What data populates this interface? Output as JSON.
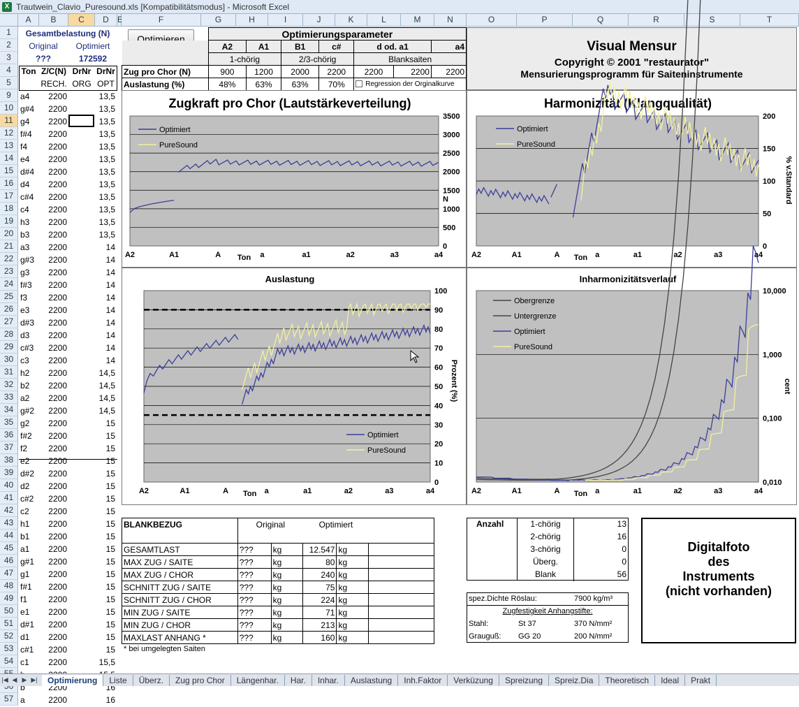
{
  "window_title": "Trautwein_Clavio_Puresound.xls  [Kompatibilitätsmodus] - Microsoft Excel",
  "columns": [
    "A",
    "B",
    "C",
    "D",
    "E",
    "F",
    "G",
    "H",
    "I",
    "J",
    "K",
    "L",
    "M",
    "N",
    "O",
    "P",
    "Q",
    "R",
    "S",
    "T"
  ],
  "rows": [
    "1",
    "2",
    "3",
    "4",
    "5",
    "9",
    "10",
    "11",
    "12",
    "13",
    "14",
    "15",
    "16",
    "17",
    "18",
    "19",
    "20",
    "21",
    "22",
    "23",
    "24",
    "25",
    "26",
    "27",
    "28",
    "29",
    "30",
    "31",
    "32",
    "33",
    "34",
    "35",
    "36",
    "37",
    "38",
    "39",
    "40",
    "41",
    "42",
    "43",
    "44",
    "45",
    "46",
    "47",
    "48",
    "49",
    "50",
    "51",
    "52",
    "53",
    "54",
    "55",
    "56",
    "57"
  ],
  "header_block": {
    "title": "Gesamtbelastung (N)",
    "original": "Original",
    "optimiert": "Optimiert",
    "orig_val": "???",
    "opt_val": "172592",
    "h_ton": "Ton",
    "h_zc": "Z/C(N)",
    "h_drnr1": "DrNr",
    "h_drnr2": "DrNr",
    "h_rech": "RECH.",
    "h_org": "ORG",
    "h_opt": "OPT"
  },
  "notes": [
    [
      "a4",
      "2200",
      "13,5"
    ],
    [
      "g#4",
      "2200",
      "13,5"
    ],
    [
      "g4",
      "2200",
      "13,5"
    ],
    [
      "f#4",
      "2200",
      "13,5"
    ],
    [
      "f4",
      "2200",
      "13,5"
    ],
    [
      "e4",
      "2200",
      "13,5"
    ],
    [
      "d#4",
      "2200",
      "13,5"
    ],
    [
      "d4",
      "2200",
      "13,5"
    ],
    [
      "c#4",
      "2200",
      "13,5"
    ],
    [
      "c4",
      "2200",
      "13,5"
    ],
    [
      "h3",
      "2200",
      "13,5"
    ],
    [
      "b3",
      "2200",
      "13,5"
    ],
    [
      "a3",
      "2200",
      "14"
    ],
    [
      "g#3",
      "2200",
      "14"
    ],
    [
      "g3",
      "2200",
      "14"
    ],
    [
      "f#3",
      "2200",
      "14"
    ],
    [
      "f3",
      "2200",
      "14"
    ],
    [
      "e3",
      "2200",
      "14"
    ],
    [
      "d#3",
      "2200",
      "14"
    ],
    [
      "d3",
      "2200",
      "14"
    ],
    [
      "c#3",
      "2200",
      "14"
    ],
    [
      "c3",
      "2200",
      "14"
    ],
    [
      "h2",
      "2200",
      "14,5"
    ],
    [
      "b2",
      "2200",
      "14,5"
    ],
    [
      "a2",
      "2200",
      "14,5"
    ],
    [
      "g#2",
      "2200",
      "14,5"
    ],
    [
      "g2",
      "2200",
      "15"
    ],
    [
      "f#2",
      "2200",
      "15"
    ],
    [
      "f2",
      "2200",
      "15"
    ],
    [
      "e2",
      "2200",
      "15"
    ],
    [
      "d#2",
      "2200",
      "15"
    ],
    [
      "d2",
      "2200",
      "15"
    ],
    [
      "c#2",
      "2200",
      "15"
    ],
    [
      "c2",
      "2200",
      "15"
    ],
    [
      "h1",
      "2200",
      "15"
    ],
    [
      "b1",
      "2200",
      "15"
    ],
    [
      "a1",
      "2200",
      "15"
    ],
    [
      "g#1",
      "2200",
      "15"
    ],
    [
      "g1",
      "2200",
      "15"
    ],
    [
      "f#1",
      "2200",
      "15"
    ],
    [
      "f1",
      "2200",
      "15"
    ],
    [
      "e1",
      "2200",
      "15"
    ],
    [
      "d#1",
      "2200",
      "15"
    ],
    [
      "d1",
      "2200",
      "15"
    ],
    [
      "c#1",
      "2200",
      "15"
    ],
    [
      "c1",
      "2200",
      "15,5"
    ],
    [
      "h",
      "2200",
      "15,5"
    ],
    [
      "b",
      "2200",
      "16"
    ],
    [
      "a",
      "2200",
      "16"
    ]
  ],
  "optimize_button": "Optimieren",
  "opt_params": {
    "title": "Optimierungsparameter",
    "labels": [
      "A2",
      "A1",
      "B1",
      "c#",
      "d  od. a1",
      "a4"
    ],
    "chor1": "1-chörig",
    "chor23": "2/3-chörig",
    "blank": "Blanksaiten",
    "zug_label": "Zug pro Chor (N)",
    "zug": [
      "900",
      "1200",
      "2000",
      "2200",
      "2200",
      "2200",
      "2200"
    ],
    "aus_label": "Auslastung (%)",
    "aus": [
      "48%",
      "63%",
      "63%",
      "70%"
    ],
    "regression": "Regression der Orginalkurve"
  },
  "visual": {
    "title": "Visual Mensur",
    "copyright": "Copyright © 2001  \"restaurator\"",
    "subtitle": "Mensurierungsprogramm für Saiteninstrumente"
  },
  "x_ticks": [
    "A2",
    "A1",
    "A",
    "a",
    "a1",
    "a2",
    "a3",
    "a4"
  ],
  "x_label": "Ton",
  "charts": {
    "zug": {
      "title": "Zugkraft pro Chor (Lautstärkeverteilung)",
      "legend": [
        "Optimiert",
        "PureSound"
      ],
      "y_ticks": [
        "3500",
        "3000",
        "2500",
        "2000",
        "1500",
        "1000",
        "500",
        "0"
      ],
      "y_unit": "N"
    },
    "har": {
      "title": "Harmonizität (Klangqualität)",
      "legend": [
        "Optimiert",
        "PureSound"
      ],
      "y_ticks": [
        "200",
        "150",
        "100",
        "50",
        "0"
      ],
      "y_label": "% v.Standard"
    },
    "aus": {
      "title": "Auslastung",
      "legend": [
        "Optimiert",
        "PureSound"
      ],
      "y_ticks": [
        "100",
        "90",
        "80",
        "70",
        "60",
        "50",
        "40",
        "30",
        "20",
        "10",
        "0"
      ],
      "y_label": "Prozent (%)"
    },
    "inh": {
      "title": "Inharmonizitätsverlauf",
      "legend": [
        "Obergrenze",
        "Untergrenze",
        "Optimiert",
        "PureSound"
      ],
      "y_ticks": [
        "10,000",
        "1,000",
        "0,100",
        "0,010"
      ],
      "y_label": "cent"
    }
  },
  "chart_data": [
    {
      "type": "line",
      "title": "Zugkraft pro Chor (Lautstärkeverteilung)",
      "xlabel": "Ton",
      "ylabel": "N",
      "ylim": [
        0,
        3500
      ],
      "x": [
        "A2",
        "A1",
        "A",
        "a",
        "a1",
        "a2",
        "a3",
        "a4"
      ],
      "series": [
        {
          "name": "Optimiert",
          "segments": [
            [
              [
                0,
                900
              ],
              [
                0.25,
                1100
              ],
              [
                0.5,
                1200
              ],
              [
                1,
                1220
              ]
            ],
            [
              [
                1.1,
                2050
              ],
              [
                1.4,
                2200
              ],
              [
                1.9,
                2300
              ],
              [
                2.4,
                2200
              ],
              [
                3,
                2220
              ],
              [
                4,
                2200
              ],
              [
                5,
                2180
              ],
              [
                6,
                2170
              ],
              [
                7,
                2200
              ]
            ]
          ]
        }
      ]
    },
    {
      "type": "line",
      "title": "Harmonizität (Klangqualität)",
      "ylabel": "% v.Standard",
      "ylim": [
        0,
        200
      ],
      "series": [
        {
          "name": "Optimiert",
          "values_note": "peaks above 200 near 'a'"
        },
        {
          "name": "PureSound"
        }
      ]
    },
    {
      "type": "line",
      "title": "Auslastung",
      "ylabel": "Prozent (%)",
      "ylim": [
        0,
        100
      ],
      "series": [
        {
          "name": "Optimiert"
        },
        {
          "name": "PureSound"
        }
      ],
      "limits": [
        90,
        35
      ]
    },
    {
      "type": "line",
      "title": "Inharmonizitätsverlauf",
      "ylabel": "cent",
      "yscale": "log",
      "ylim": [
        0.01,
        10
      ],
      "series": [
        {
          "name": "Obergrenze"
        },
        {
          "name": "Untergrenze"
        },
        {
          "name": "Optimiert"
        },
        {
          "name": "PureSound"
        }
      ]
    }
  ],
  "blank": {
    "title": "BLANKBEZUG",
    "col_orig": "Original",
    "col_opt": "Optimiert",
    "rows": [
      [
        "GESAMTLAST",
        "???",
        "kg",
        "12.547",
        "kg"
      ],
      [
        "MAX ZUG / SAITE",
        "???",
        "kg",
        "80",
        "kg"
      ],
      [
        "MAX ZUG / CHOR",
        "???",
        "kg",
        "240",
        "kg"
      ],
      [
        "SCHNITT ZUG / SAITE",
        "???",
        "kg",
        "75",
        "kg"
      ],
      [
        "SCHNITT ZUG / CHOR",
        "???",
        "kg",
        "224",
        "kg"
      ],
      [
        "MIN ZUG / SAITE",
        "???",
        "kg",
        "71",
        "kg"
      ],
      [
        "MIN ZUG / CHOR",
        "???",
        "kg",
        "213",
        "kg"
      ],
      [
        "MAXLAST ANHANG *",
        "???",
        "kg",
        "160",
        "kg"
      ]
    ],
    "footnote": "* bei umgelegten Saiten"
  },
  "anzahl": {
    "title": "Anzahl",
    "rows": [
      [
        "1-chörig",
        "13"
      ],
      [
        "2-chörig",
        "16"
      ],
      [
        "3-chörig",
        "0"
      ],
      [
        "Überg.",
        "0"
      ],
      [
        "Blank",
        "56"
      ]
    ]
  },
  "dichte": {
    "label": "spez.Dichte Röslau:",
    "value": "7900 kg/m³"
  },
  "zugfest": {
    "title": "Zugfestigkeit Anhangstifte:",
    "rows": [
      [
        "Stahl:",
        "St 37",
        "370 N/mm²"
      ],
      [
        "Grauguß:",
        "GG 20",
        "200 N/mm²"
      ]
    ]
  },
  "foto": [
    "Digitalfoto",
    "des",
    "Instruments",
    "(nicht vorhanden)"
  ],
  "tabs": [
    "Optimierung",
    "Liste",
    "Überz.",
    "Zug pro Chor",
    "Längenhar.",
    "Har.",
    "Inhar.",
    "Auslastung",
    "Inh.Faktor",
    "Verküzung",
    "Spreizung",
    "Spreiz.Dia",
    "Theoretisch",
    "Ideal",
    "Prakt"
  ]
}
